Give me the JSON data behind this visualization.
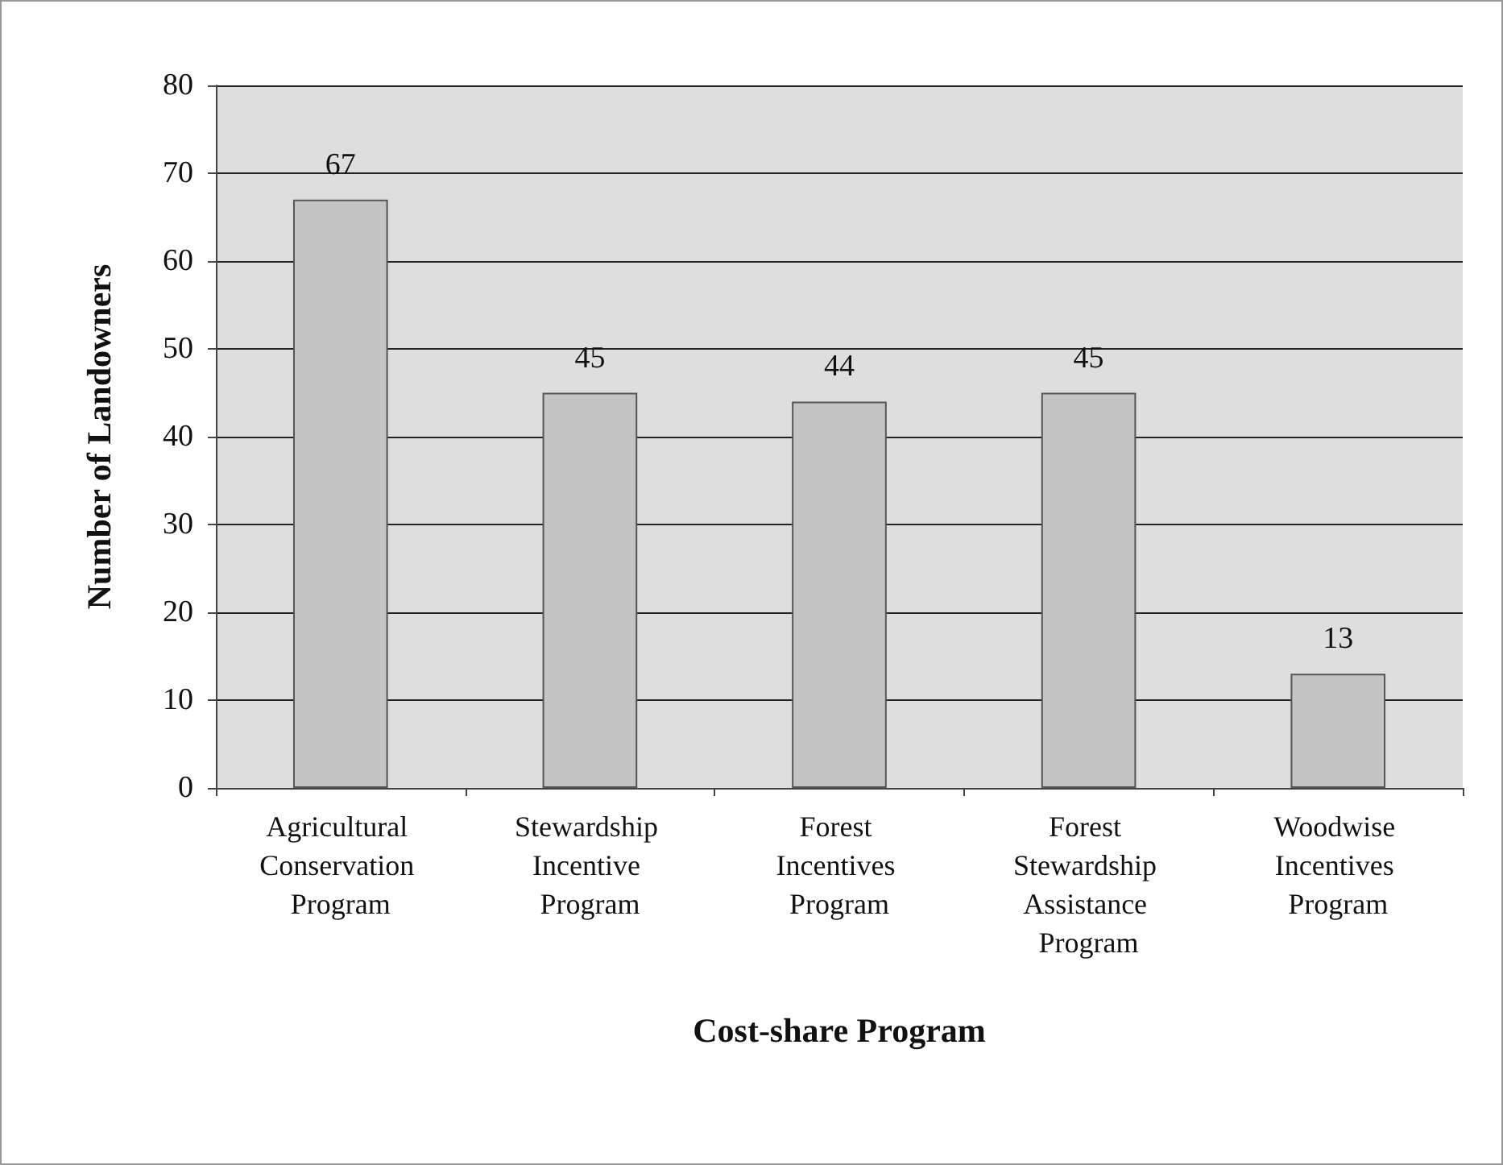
{
  "chart_data": {
    "type": "bar",
    "xlabel": "Cost-share Program",
    "ylabel": "Number of Landowners",
    "categories": [
      "Agricultural Conservation Program",
      "Stewardship Incentive Program",
      "Forest Incentives Program",
      "Forest Stewardship Assistance Program",
      "Woodwise Incentives Program"
    ],
    "values": [
      67,
      45,
      44,
      45,
      13
    ],
    "color": "#c4c4c4",
    "ylim": [
      0,
      80
    ],
    "yticks": [
      0,
      10,
      20,
      30,
      40,
      50,
      60,
      70,
      80
    ],
    "grid": "y",
    "data_labels": true
  }
}
